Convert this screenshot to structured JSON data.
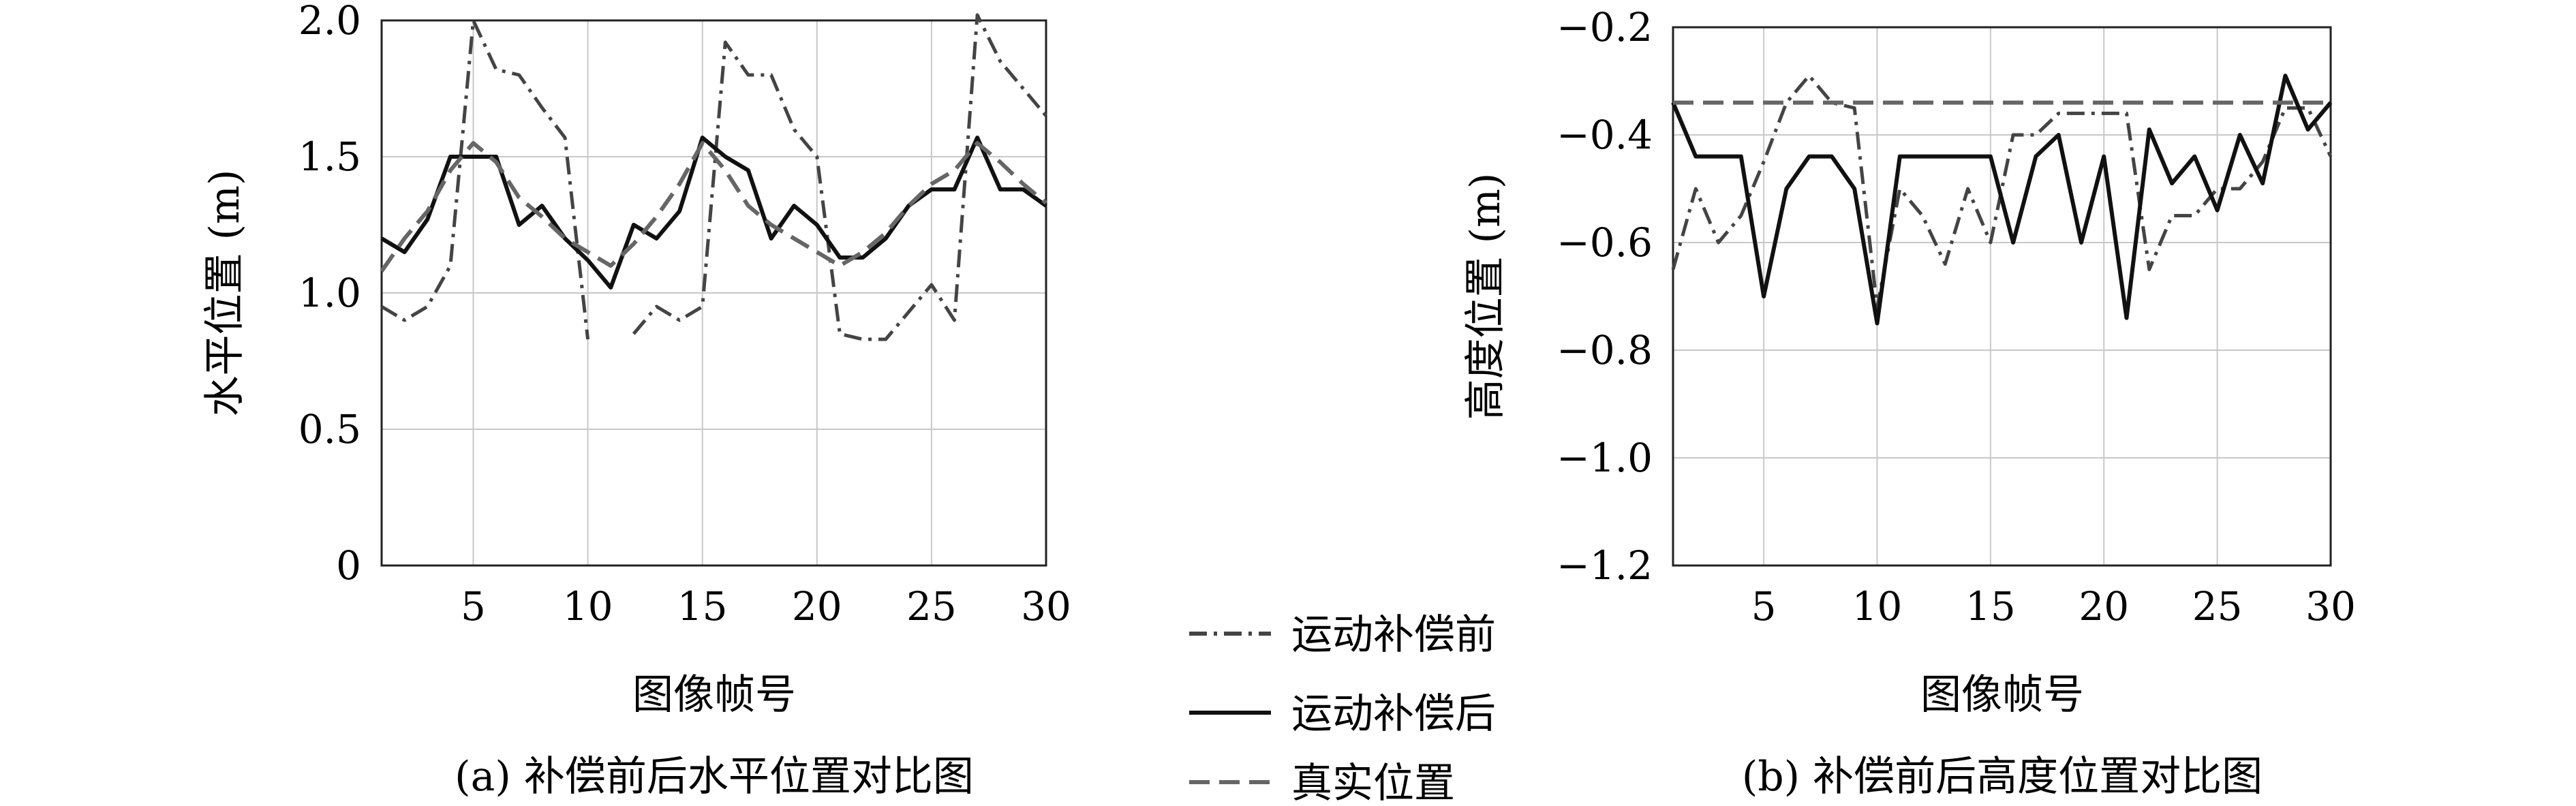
{
  "legend": {
    "before_label": "运动补偿前",
    "after_label": "运动补偿后",
    "truth_label": "真实位置"
  },
  "chart_data": [
    {
      "type": "line",
      "caption": "(a) 补偿前后水平位置对比图",
      "xlabel": "图像帧号",
      "ylabel": "水平位置 (m)",
      "xlim": [
        1,
        30
      ],
      "ylim": [
        0,
        2.0
      ],
      "xticks": [
        5,
        10,
        15,
        20,
        25,
        30
      ],
      "yticks": [
        0,
        0.5,
        1.0,
        1.5,
        2.0
      ],
      "ytick_labels": [
        "0",
        "0.5",
        "1.0",
        "1.5",
        "2.0"
      ],
      "grid": true,
      "x": [
        1,
        2,
        3,
        4,
        5,
        6,
        7,
        8,
        9,
        10,
        11,
        12,
        13,
        14,
        15,
        16,
        17,
        18,
        19,
        20,
        21,
        22,
        23,
        24,
        25,
        26,
        27,
        28,
        29,
        30
      ],
      "series": [
        {
          "name": "运动补偿前",
          "style": "dashdot",
          "values": [
            0.95,
            0.9,
            0.95,
            1.1,
            2.0,
            1.82,
            1.8,
            1.68,
            1.57,
            0.83,
            null,
            0.85,
            0.95,
            0.9,
            0.95,
            1.92,
            1.8,
            1.8,
            1.6,
            1.5,
            0.85,
            0.83,
            0.83,
            0.93,
            1.03,
            0.9,
            2.02,
            1.85,
            1.75,
            1.65
          ]
        },
        {
          "name": "运动补偿后",
          "style": "solid",
          "values": [
            1.2,
            1.15,
            1.27,
            1.5,
            1.5,
            1.5,
            1.25,
            1.32,
            1.2,
            1.12,
            1.02,
            1.25,
            1.2,
            1.3,
            1.57,
            1.5,
            1.45,
            1.2,
            1.32,
            1.25,
            1.13,
            1.13,
            1.2,
            1.32,
            1.38,
            1.38,
            1.57,
            1.38,
            1.38,
            1.32
          ]
        },
        {
          "name": "真实位置",
          "style": "dashed",
          "values": [
            1.08,
            1.2,
            1.3,
            1.45,
            1.55,
            1.48,
            1.35,
            1.28,
            1.2,
            1.15,
            1.1,
            1.18,
            1.28,
            1.4,
            1.55,
            1.45,
            1.32,
            1.25,
            1.2,
            1.15,
            1.1,
            1.15,
            1.22,
            1.32,
            1.4,
            1.45,
            1.55,
            1.48,
            1.4,
            1.33
          ]
        }
      ]
    },
    {
      "type": "line",
      "caption": "(b) 补偿前后高度位置对比图",
      "xlabel": "图像帧号",
      "ylabel": "高度位置 (m)",
      "xlim": [
        1,
        30
      ],
      "ylim": [
        -1.2,
        -0.2
      ],
      "xticks": [
        5,
        10,
        15,
        20,
        25,
        30
      ],
      "yticks": [
        -1.2,
        -1.0,
        -0.8,
        -0.6,
        -0.4,
        -0.2
      ],
      "ytick_labels": [
        "−1.2",
        "−1.0",
        "−0.8",
        "−0.6",
        "−0.4",
        "−0.2"
      ],
      "grid": true,
      "x": [
        1,
        2,
        3,
        4,
        5,
        6,
        7,
        8,
        9,
        10,
        11,
        12,
        13,
        14,
        15,
        16,
        17,
        18,
        19,
        20,
        21,
        22,
        23,
        24,
        25,
        26,
        27,
        28,
        29,
        30
      ],
      "series": [
        {
          "name": "运动补偿前",
          "style": "dashdot",
          "values": [
            -0.65,
            -0.5,
            -0.6,
            -0.55,
            -0.45,
            -0.34,
            -0.29,
            -0.34,
            -0.35,
            -0.72,
            -0.5,
            -0.55,
            -0.64,
            -0.5,
            -0.6,
            -0.4,
            -0.4,
            -0.36,
            -0.36,
            -0.36,
            -0.36,
            -0.65,
            -0.55,
            -0.55,
            -0.5,
            -0.5,
            -0.45,
            -0.35,
            -0.35,
            -0.44
          ]
        },
        {
          "name": "运动补偿后",
          "style": "solid",
          "values": [
            -0.34,
            -0.44,
            -0.44,
            -0.44,
            -0.7,
            -0.5,
            -0.44,
            -0.44,
            -0.5,
            -0.75,
            -0.44,
            -0.44,
            -0.44,
            -0.44,
            -0.44,
            -0.6,
            -0.44,
            -0.4,
            -0.6,
            -0.44,
            -0.74,
            -0.39,
            -0.49,
            -0.44,
            -0.54,
            -0.4,
            -0.49,
            -0.29,
            -0.39,
            -0.34
          ]
        },
        {
          "name": "真实位置",
          "style": "dashed",
          "values": [
            -0.34,
            -0.34,
            -0.34,
            -0.34,
            -0.34,
            -0.34,
            -0.34,
            -0.34,
            -0.34,
            -0.34,
            -0.34,
            -0.34,
            -0.34,
            -0.34,
            -0.34,
            -0.34,
            -0.34,
            -0.34,
            -0.34,
            -0.34,
            -0.34,
            -0.34,
            -0.34,
            -0.34,
            -0.34,
            -0.34,
            -0.34,
            -0.34,
            -0.34,
            -0.34
          ]
        }
      ]
    }
  ]
}
